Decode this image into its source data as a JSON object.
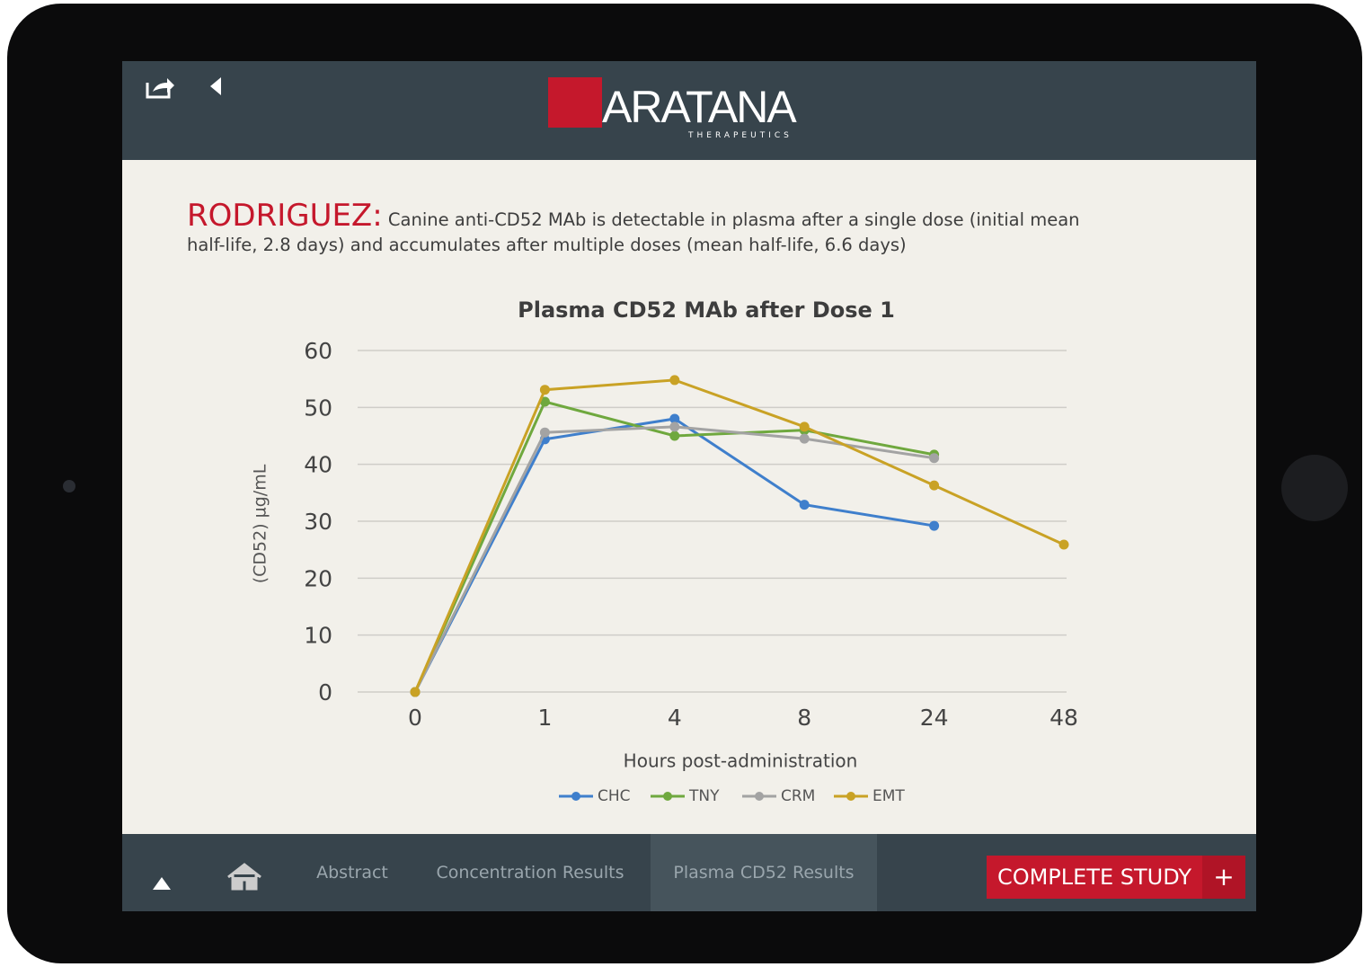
{
  "header": {
    "logo": "ARATANA",
    "logo_sub": "THERAPEUTICS"
  },
  "intro": {
    "lead": "RODRIGUEZ:",
    "text": "Canine anti-CD52 MAb is detectable in plasma after a single dose (initial mean half-life, 2.8 days) and accumulates after multiple doses (mean half-life, 6.6 days)"
  },
  "chart_data": {
    "type": "line",
    "title": "Plasma CD52 MAb after Dose 1",
    "y_label": "(CD52) µg/mL",
    "x_label": "Hours post-administration",
    "categories": [
      "0",
      "1",
      "4",
      "8",
      "24",
      "48"
    ],
    "series": [
      {
        "name": "CHC",
        "color": "#3f7fcc",
        "values": [
          0,
          44.4,
          48.0,
          32.9,
          29.2,
          null
        ]
      },
      {
        "name": "TNY",
        "color": "#6fa83e",
        "values": [
          0,
          51.0,
          45.0,
          46.0,
          41.7,
          null
        ]
      },
      {
        "name": "CRM",
        "color": "#a3a3a3",
        "values": [
          0,
          45.6,
          46.6,
          44.5,
          41.1,
          null
        ]
      },
      {
        "name": "EMT",
        "color": "#c9a225",
        "values": [
          0,
          53.1,
          54.8,
          46.6,
          36.3,
          25.9
        ]
      }
    ],
    "ylim": [
      0,
      60
    ],
    "yticks": [
      0,
      10,
      20,
      30,
      40,
      50,
      60
    ],
    "grid": true,
    "legend": "bottom"
  },
  "nav": {
    "items": [
      "Abstract",
      "Concentration Results",
      "Plasma CD52 Results"
    ],
    "active": 2,
    "button": "COMPLETE STUDY",
    "button_icon": "+"
  }
}
